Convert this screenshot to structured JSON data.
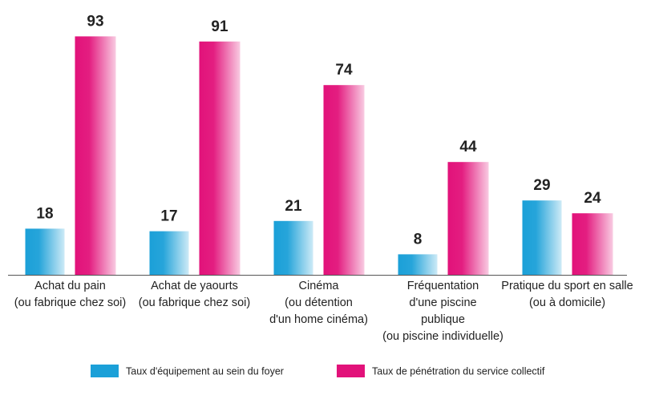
{
  "chart_data": {
    "type": "bar",
    "categories": [
      [
        "Achat du pain",
        "(ou fabrique chez soi)"
      ],
      [
        "Achat de yaourts",
        "(ou fabrique chez soi)"
      ],
      [
        "Cinéma",
        "(ou détention",
        "d'un home cinéma)"
      ],
      [
        "Fréquentation",
        "d'une piscine",
        "publique",
        "(ou piscine individuelle)"
      ],
      [
        "Pratique du sport en salle",
        "(ou à domicile)"
      ]
    ],
    "series": [
      {
        "name": "Taux d'équipement au sein du foyer",
        "color": "#1ba0d8",
        "values": [
          18,
          17,
          21,
          8,
          29
        ]
      },
      {
        "name": "Taux de pénétration du service collectif",
        "color": "#e2127a",
        "values": [
          93,
          91,
          74,
          44,
          24
        ]
      }
    ],
    "ylim": [
      0,
      100
    ],
    "legend": "bottom"
  }
}
